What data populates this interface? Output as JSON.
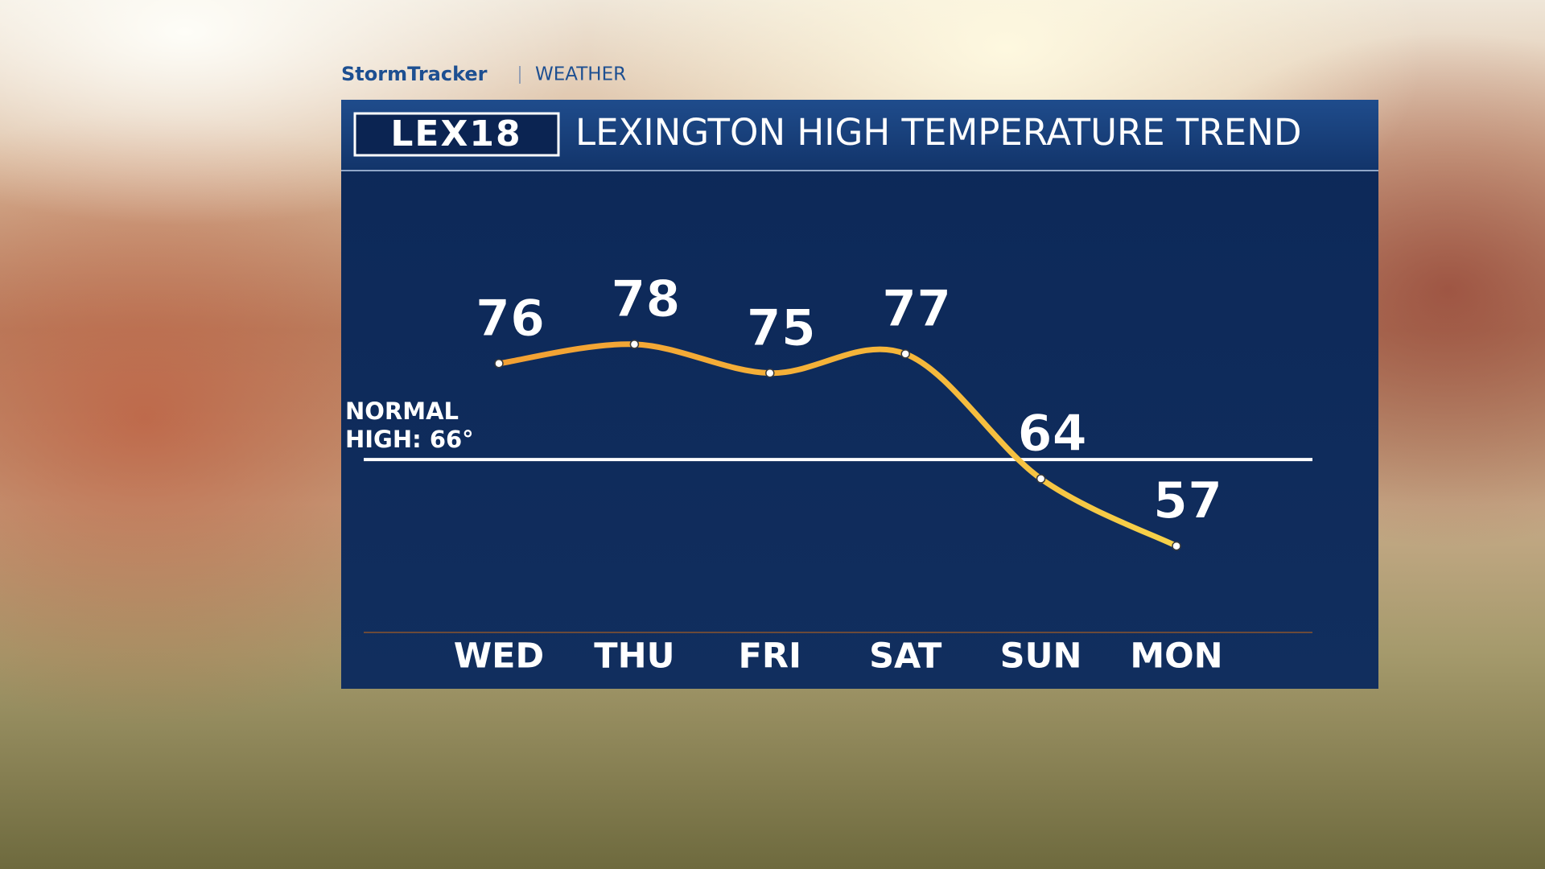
{
  "header": {
    "brand": "StormTracker",
    "section": "WEATHER",
    "logo": "LEX18"
  },
  "chart_data": {
    "type": "line",
    "title": "LEXINGTON HIGH TEMPERATURE TREND",
    "categories": [
      "WED",
      "THU",
      "FRI",
      "SAT",
      "SUN",
      "MON"
    ],
    "values": [
      76,
      78,
      75,
      77,
      64,
      57
    ],
    "color": "#f5a623",
    "ylim": [
      48,
      96
    ],
    "reference_line": {
      "value": 66,
      "lines": [
        "NORMAL",
        "HIGH: 66°"
      ]
    }
  }
}
